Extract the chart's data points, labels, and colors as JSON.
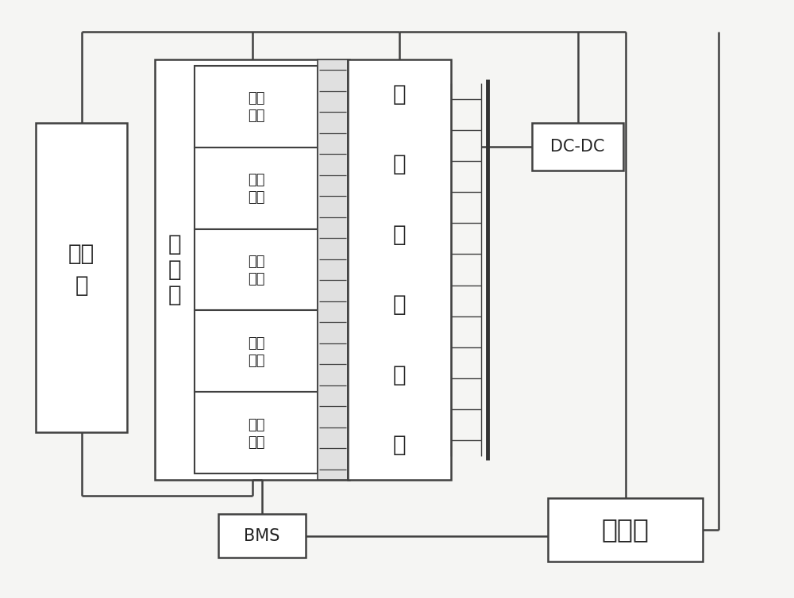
{
  "bg_color": "#f5f5f3",
  "line_color": "#404040",
  "box_fill": "#ffffff",
  "charger_label_lines": [
    "充电",
    "机"
  ],
  "battery_pack_label": [
    "电",
    "池",
    "组"
  ],
  "cell_label_lines": [
    "电池",
    "单元"
  ],
  "switch_label": [
    "多",
    "路",
    "控",
    "制",
    "开",
    "关"
  ],
  "dcdc_label": "DC-DC",
  "bms_label": "BMS",
  "controller_label": "控制器",
  "n_cells": 5,
  "n_hatch_lines": 20,
  "n_conn_lines": 12,
  "font_size_large": 20,
  "font_size_medium": 15,
  "font_size_small": 13,
  "font_size_controller": 24
}
